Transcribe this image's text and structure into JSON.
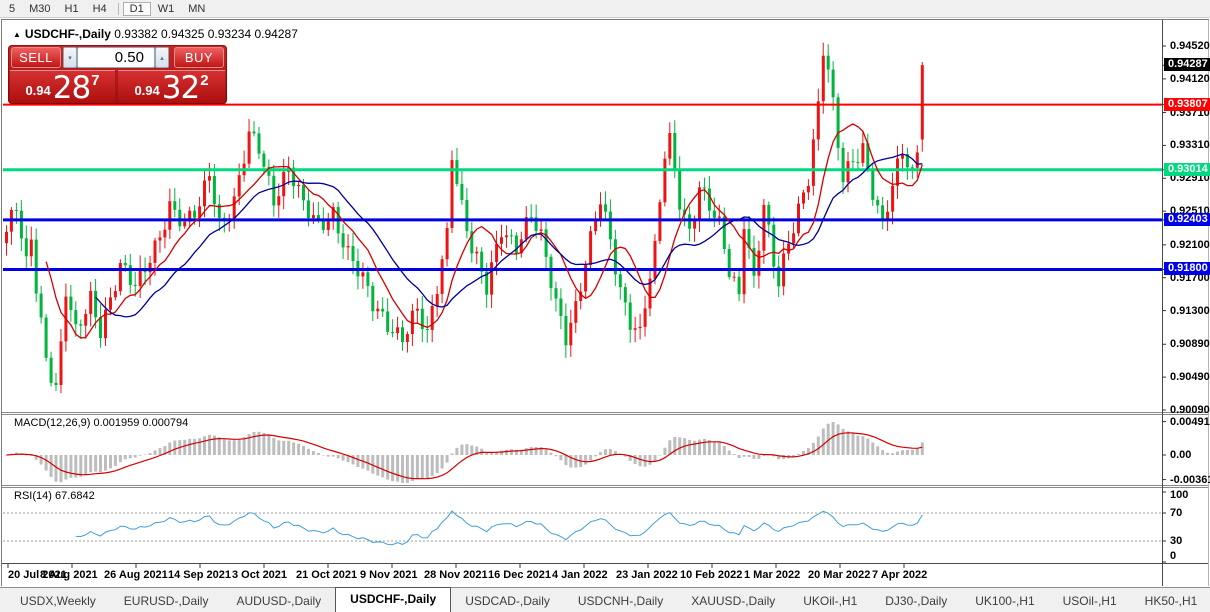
{
  "toolbar": {
    "periods": [
      "5",
      "M30",
      "H1",
      "H4",
      "D1",
      "W1",
      "MN"
    ],
    "active_period": "D1",
    "separator_after": "H4"
  },
  "chart": {
    "collapse_arrow": "▲",
    "title": "USDCHF-,Daily",
    "ohlc": {
      "open": "0.93382",
      "high": "0.94325",
      "low": "0.93234",
      "close": "0.94287"
    },
    "trade_panel": {
      "sell_label": "SELL",
      "buy_label": "BUY",
      "volume": "0.50",
      "spin_down_icon": "▾",
      "spin_up_icon": "▴",
      "sell_price": {
        "prefix": "0.94",
        "big": "28",
        "sup": "7"
      },
      "buy_price": {
        "prefix": "0.94",
        "big": "32",
        "sup": "2"
      }
    },
    "colors": {
      "bull_candle": "#ed1414",
      "bear_candle": "#00b43c",
      "ma_fast": "#d40000",
      "ma_slow": "#000099",
      "level_red": "#fe0000",
      "level_green": "#00d97f",
      "level_blue": "#0000e8",
      "current_badge_bg": "#000000",
      "macd_histogram": "#bdbdbd",
      "macd_signal": "#d40000",
      "rsi_line": "#419fd9"
    },
    "levels": [
      {
        "value": 0.93807,
        "label": "0.93807",
        "color": "#fe0000",
        "thickness": 2
      },
      {
        "value": 0.93014,
        "label": "0.93014",
        "color": "#00d97f",
        "thickness": 3
      },
      {
        "value": 0.92403,
        "label": "0.92403",
        "color": "#0000e8",
        "thickness": 3
      },
      {
        "value": 0.918,
        "label": "0.91800",
        "color": "#0000e8",
        "thickness": 3
      }
    ],
    "current_price": {
      "value": 0.94287,
      "label": "0.94287"
    },
    "y_axis": {
      "ticks": [
        "0.94520",
        "0.94120",
        "0.93710",
        "0.93310",
        "0.92910",
        "0.92510",
        "0.92100",
        "0.91700",
        "0.91300",
        "0.90890",
        "0.90490",
        "0.90090"
      ],
      "range": {
        "price_top": 0.9452,
        "price_bottom": 0.9009
      }
    },
    "x_axis": {
      "dates": [
        "20 Jul 2021",
        "8 Aug 2021",
        "26 Aug 2021",
        "14 Sep 2021",
        "3 Oct 2021",
        "21 Oct 2021",
        "9 Nov 2021",
        "28 Nov 2021",
        "16 Dec 2021",
        "4 Jan 2022",
        "23 Jan 2022",
        "10 Feb 2022",
        "1 Mar 2022",
        "20 Mar 2022",
        "7 Apr 2022"
      ]
    },
    "series": {
      "count": 186,
      "first_open": 0.9212,
      "ma_fast_period": 9,
      "ma_slow_period": 19,
      "pivots": [
        [
          0,
          0.922
        ],
        [
          2,
          0.9252
        ],
        [
          4,
          0.9186
        ],
        [
          5,
          0.9222
        ],
        [
          6,
          0.9165
        ],
        [
          8,
          0.9076
        ],
        [
          10,
          0.9035
        ],
        [
          11,
          0.9082
        ],
        [
          12,
          0.915
        ],
        [
          14,
          0.9098
        ],
        [
          17,
          0.9148
        ],
        [
          19,
          0.9112
        ],
        [
          23,
          0.918
        ],
        [
          26,
          0.9155
        ],
        [
          30,
          0.9212
        ],
        [
          33,
          0.9258
        ],
        [
          36,
          0.9228
        ],
        [
          39,
          0.9256
        ],
        [
          41,
          0.9304
        ],
        [
          43,
          0.924
        ],
        [
          46,
          0.926
        ],
        [
          49,
          0.9338
        ],
        [
          51,
          0.9328
        ],
        [
          54,
          0.927
        ],
        [
          57,
          0.9306
        ],
        [
          60,
          0.9253
        ],
        [
          63,
          0.9232
        ],
        [
          66,
          0.9253
        ],
        [
          69,
          0.92
        ],
        [
          72,
          0.9163
        ],
        [
          74,
          0.9135
        ],
        [
          77,
          0.9118
        ],
        [
          80,
          0.91
        ],
        [
          83,
          0.9126
        ],
        [
          85,
          0.9094
        ],
        [
          87,
          0.916
        ],
        [
          89,
          0.9228
        ],
        [
          90,
          0.9328
        ],
        [
          92,
          0.9258
        ],
        [
          94,
          0.9203
        ],
        [
          97,
          0.9153
        ],
        [
          100,
          0.9233
        ],
        [
          103,
          0.9213
        ],
        [
          106,
          0.9243
        ],
        [
          108,
          0.9213
        ],
        [
          111,
          0.914
        ],
        [
          113,
          0.9104
        ],
        [
          115,
          0.9138
        ],
        [
          117,
          0.9188
        ],
        [
          120,
          0.926
        ],
        [
          122,
          0.9213
        ],
        [
          124,
          0.9158
        ],
        [
          126,
          0.9123
        ],
        [
          128,
          0.9103
        ],
        [
          129,
          0.9138
        ],
        [
          131,
          0.9198
        ],
        [
          133,
          0.9318
        ],
        [
          134,
          0.9336
        ],
        [
          136,
          0.9268
        ],
        [
          138,
          0.923
        ],
        [
          140,
          0.9281
        ],
        [
          142,
          0.9253
        ],
        [
          144,
          0.9228
        ],
        [
          146,
          0.9178
        ],
        [
          148,
          0.9153
        ],
        [
          149,
          0.9246
        ],
        [
          151,
          0.917
        ],
        [
          153,
          0.9256
        ],
        [
          155,
          0.9183
        ],
        [
          156,
          0.9158
        ],
        [
          158,
          0.9213
        ],
        [
          160,
          0.9258
        ],
        [
          162,
          0.9298
        ],
        [
          164,
          0.9378
        ],
        [
          165,
          0.9446
        ],
        [
          166,
          0.9418
        ],
        [
          168,
          0.9328
        ],
        [
          169,
          0.9288
        ],
        [
          171,
          0.9316
        ],
        [
          173,
          0.9333
        ],
        [
          175,
          0.9278
        ],
        [
          177,
          0.923
        ],
        [
          179,
          0.9276
        ],
        [
          181,
          0.9323
        ],
        [
          183,
          0.9298
        ],
        [
          184,
          0.933
        ],
        [
          185,
          0.94287
        ]
      ],
      "last_candle": {
        "open": 0.93382,
        "high": 0.94325,
        "low": 0.93234,
        "close": 0.94287
      }
    }
  },
  "macd": {
    "label": "MACD(12,26,9) 0.001959 0.000794",
    "params": {
      "fast": 12,
      "slow": 26,
      "signal": 9
    },
    "axis_ticks": [
      "0.004913",
      "0.00",
      "-0.003614"
    ]
  },
  "rsi": {
    "label": "RSI(14) 67.6842",
    "period": 14,
    "axis_ticks": [
      "100",
      "70",
      "30",
      "0"
    ],
    "guide_levels": [
      70,
      30
    ]
  },
  "tabs": {
    "items": [
      "USDX,Weekly",
      "EURUSD-,Daily",
      "AUDUSD-,Daily",
      "USDCHF-,Daily",
      "USDCAD-,Daily",
      "USDCNH-,Daily",
      "XAUUSD-,Daily",
      "UKOil-,H1",
      "DJ30-,Daily",
      "UK100-,H1",
      "USOil-,H1",
      "HK50-,H1"
    ],
    "active": "USDCHF-,Daily",
    "scroll_left_icon": "◄",
    "scroll_right_icon": "►"
  }
}
